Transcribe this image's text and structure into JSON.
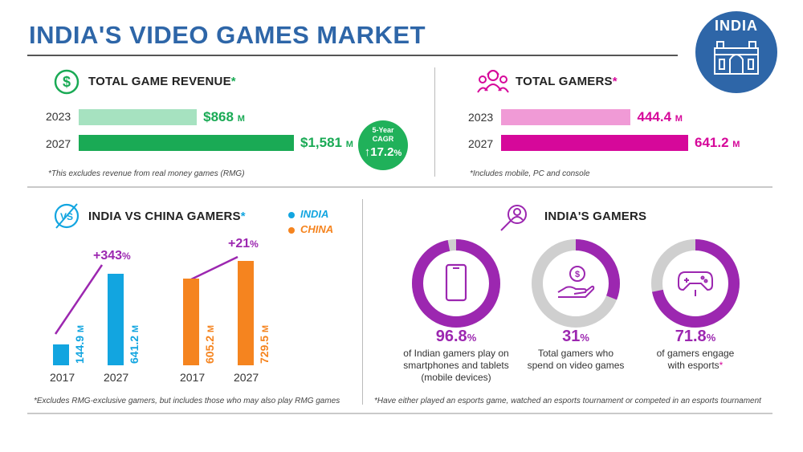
{
  "title": "INDIA'S VIDEO GAMES MARKET",
  "badge": {
    "label": "INDIA",
    "icon": "gateway-of-india-icon"
  },
  "colors": {
    "blue": "#2e66a8",
    "green": "#1aaa55",
    "green_light": "#a6e2c0",
    "pink": "#d6089a",
    "pink_light": "#f09ad6",
    "cyan": "#12a5e0",
    "orange": "#f5841f",
    "purple": "#9c27b0",
    "grey": "#cfcfcf"
  },
  "revenue": {
    "title": "TOTAL GAME REVENUE",
    "star": "*",
    "icon": "dollar-circle-icon",
    "note": "*This excludes revenue from real money games (RMG)",
    "cagr": {
      "label_line1": "5-Year",
      "label_line2": "CAGR",
      "value": "17.2",
      "unit": "%"
    }
  },
  "gamers": {
    "title": "TOTAL GAMERS",
    "star": "*",
    "icon": "gamers-group-icon",
    "note": "*Includes mobile, PC and console"
  },
  "vs": {
    "title": "INDIA VS CHINA GAMERS",
    "star": "*",
    "icon": "vs-icon",
    "note": "*Excludes RMG-exclusive gamers, but includes those who may also play RMG games",
    "legend_india": "INDIA",
    "legend_china": "CHINA",
    "growth_india": "+343",
    "growth_china": "+21",
    "growth_unit": "%"
  },
  "india_gamers": {
    "title": "INDIA'S GAMERS",
    "icon": "gamer-search-icon",
    "note": "*Have either played an esports game, watched an esports tournament or competed in an esports tournament",
    "donuts": [
      {
        "value": "96.8",
        "unit": "%",
        "line1": "of Indian gamers play on",
        "line2": "smartphones and tablets",
        "line3": "(mobile devices)",
        "icon": "smartphone-icon"
      },
      {
        "value": "31",
        "unit": "%",
        "line1": "Total gamers who",
        "line2": "spend on video games",
        "line3": "",
        "icon": "hand-money-icon"
      },
      {
        "value": "71.8",
        "unit": "%",
        "line1": "of gamers engage",
        "line2": "with esports",
        "line3": "",
        "star": "*",
        "icon": "gamepad-icon"
      }
    ]
  },
  "chart_data": [
    {
      "type": "bar",
      "title": "TOTAL GAME REVENUE",
      "orientation": "horizontal",
      "categories": [
        "2023",
        "2027"
      ],
      "values": [
        868,
        1581
      ],
      "labels": [
        "$868",
        "$1,581"
      ],
      "unit": "M"
    },
    {
      "type": "bar",
      "title": "TOTAL GAMERS",
      "orientation": "horizontal",
      "categories": [
        "2023",
        "2027"
      ],
      "values": [
        444.4,
        641.2
      ],
      "labels": [
        "444.4",
        "641.2"
      ],
      "unit": "M"
    },
    {
      "type": "bar",
      "title": "INDIA VS CHINA GAMERS",
      "categories": [
        "2017",
        "2027"
      ],
      "series": [
        {
          "name": "INDIA",
          "values": [
            144.9,
            641.2
          ],
          "labels": [
            "144.9",
            "641.2"
          ],
          "color": "#12a5e0"
        },
        {
          "name": "CHINA",
          "values": [
            605.2,
            729.5
          ],
          "labels": [
            "605.2",
            "729.5"
          ],
          "color": "#f5841f"
        }
      ],
      "unit": "M"
    },
    {
      "type": "pie",
      "title": "INDIA'S GAMERS",
      "values": [
        96.8,
        31,
        71.8
      ],
      "unit": "%"
    }
  ]
}
